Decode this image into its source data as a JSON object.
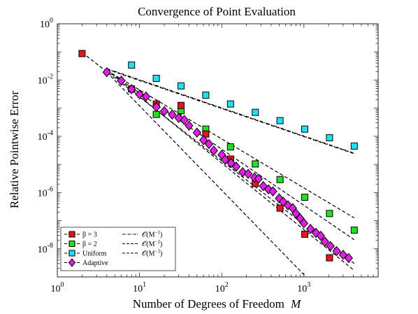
{
  "chart_data": {
    "type": "scatter",
    "title": "Convergence of Point Evaluation",
    "xlabel": "Number of Degrees of Freedom",
    "xlabel_symbol": "M",
    "ylabel": "Relative Pointwise Error",
    "xscale": "log",
    "yscale": "log",
    "xlim": [
      1,
      8000
    ],
    "ylim": [
      1e-09,
      1
    ],
    "grid": false,
    "legend_placement": "bottom-left",
    "x_ticks": [
      {
        "value": 1,
        "base": "10",
        "exp": "0"
      },
      {
        "value": 10,
        "base": "10",
        "exp": "1"
      },
      {
        "value": 100,
        "base": "10",
        "exp": "2"
      },
      {
        "value": 1000,
        "base": "10",
        "exp": "3"
      }
    ],
    "y_ticks": [
      {
        "value": 1e-08,
        "base": "10",
        "exp": "-8"
      },
      {
        "value": 1e-06,
        "base": "10",
        "exp": "-6"
      },
      {
        "value": 0.0001,
        "base": "10",
        "exp": "-4"
      },
      {
        "value": 0.01,
        "base": "10",
        "exp": "-2"
      },
      {
        "value": 1,
        "base": "10",
        "exp": "0"
      }
    ],
    "series": [
      {
        "name": "β = 3",
        "marker": "square",
        "color": "#e8141c",
        "x": [
          2,
          8,
          16,
          32,
          64,
          128,
          256,
          512,
          1024,
          2048
        ],
        "y": [
          0.0875,
          0.0048,
          0.0014,
          0.00125,
          0.00012,
          1.55e-05,
          2.1e-06,
          2.8e-07,
          3.3e-08,
          4.8e-09
        ]
      },
      {
        "name": "β = 2",
        "marker": "square",
        "color": "#22e01e",
        "x": [
          16,
          32,
          64,
          128,
          256,
          512,
          1024,
          2048,
          4096
        ],
        "y": [
          0.0006,
          0.00082,
          0.00018,
          4.2e-05,
          1.04e-05,
          2.9e-06,
          6.8e-07,
          1.8e-07,
          4.6e-08
        ]
      },
      {
        "name": "Uniform",
        "marker": "square",
        "color": "#1ee0ee",
        "x": [
          8,
          16,
          32,
          64,
          128,
          256,
          512,
          1024,
          2048,
          4096
        ],
        "y": [
          0.034,
          0.0115,
          0.0062,
          0.0029,
          0.00141,
          0.00071,
          0.00036,
          0.00018,
          8.9e-05,
          4.5e-05
        ]
      },
      {
        "name": "Adaptive",
        "marker": "diamond",
        "color": "#e01ee6",
        "x": [
          4,
          6,
          8,
          10,
          12,
          16,
          20,
          25,
          30,
          35,
          40,
          50,
          60,
          70,
          80,
          100,
          110,
          130,
          150,
          180,
          210,
          250,
          280,
          320,
          370,
          420,
          500,
          560,
          640,
          730,
          800,
          900,
          1000,
          1200,
          1400,
          1600,
          1800,
          2100,
          2500,
          3000,
          3500
        ],
        "y": [
          0.019,
          0.0095,
          0.0047,
          0.0031,
          0.0026,
          0.0011,
          0.00078,
          0.00059,
          0.00045,
          0.00038,
          0.00024,
          0.000135,
          7.3e-05,
          5.3e-05,
          3.1e-05,
          2.2e-05,
          1.46e-05,
          1.12e-05,
          8.3e-06,
          5.3e-06,
          4.6e-06,
          3.4e-06,
          3.1e-06,
          1.7e-06,
          1.3e-06,
          1.1e-06,
          6.2e-07,
          4.7e-07,
          3.5e-07,
          2.8e-07,
          1.8e-07,
          1.2e-07,
          8.1e-08,
          5.1e-08,
          3.7e-08,
          2.9e-08,
          1.8e-08,
          1.25e-08,
          8.3e-09,
          6.1e-09,
          4.7e-09
        ]
      }
    ],
    "reference_lines": [
      {
        "name": "O(M^-1)",
        "style": "dash-dot",
        "x": [
          4,
          4096
        ],
        "y": [
          0.0255,
          2.5e-05
        ]
      },
      {
        "name": "O(M^-2)",
        "style": "dashed",
        "x": [
          4,
          4096
        ],
        "y": [
          0.0215,
          2.1e-08
        ]
      },
      {
        "name": "O(M^-3)",
        "style": "dashed",
        "x": [
          4,
          2048
        ],
        "y": [
          0.019,
          1.4e-10
        ]
      },
      {
        "name": "",
        "style": "dashed",
        "x": [
          4,
          4096
        ],
        "y": [
          0.023,
          1.7e-09
        ]
      },
      {
        "name": "",
        "style": "dashed",
        "x": [
          4,
          4096
        ],
        "y": [
          0.022,
          1.25e-07
        ]
      },
      {
        "name": "",
        "style": "dashed",
        "x": [
          4,
          4096
        ],
        "y": [
          0.024,
          2.4e-05
        ]
      },
      {
        "name": "",
        "style": "dashed",
        "x": [
          2,
          4096
        ],
        "y": [
          0.095,
          3e-09
        ]
      }
    ],
    "legend": {
      "markers": [
        {
          "label": "β = 3",
          "marker": "square",
          "color": "#e8141c"
        },
        {
          "label": "β = 2",
          "marker": "square",
          "color": "#22e01e"
        },
        {
          "label": "Uniform",
          "marker": "square",
          "color": "#1ee0ee"
        },
        {
          "label": "Adaptive",
          "marker": "diamond",
          "color": "#e01ee6"
        }
      ],
      "lines": [
        {
          "label": "O(M^-1)",
          "pre": "𝒪(M",
          "sup": "−1",
          "post": ")",
          "style": "dash-dot"
        },
        {
          "label": "O(M^-2)",
          "pre": "𝒪(M",
          "sup": "−2",
          "post": ")",
          "style": "dashed"
        },
        {
          "label": "O(M^-3)",
          "pre": "𝒪(M",
          "sup": "−3",
          "post": ")",
          "style": "dashed"
        }
      ]
    }
  }
}
